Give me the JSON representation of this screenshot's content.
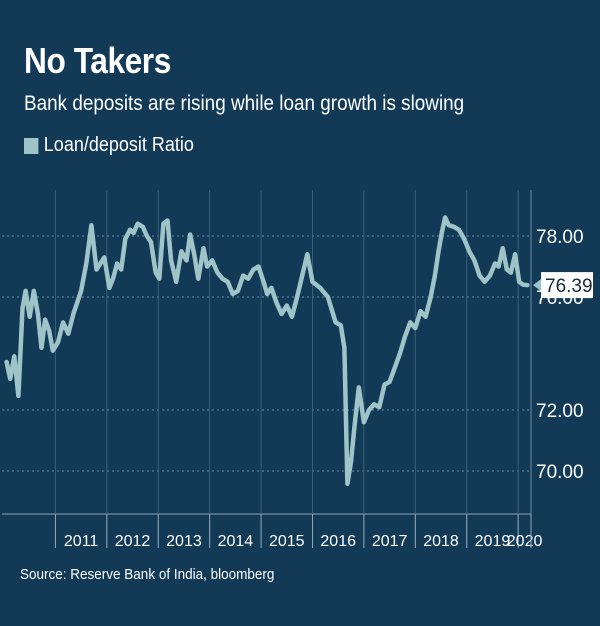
{
  "header": {
    "title": "No Takers",
    "subtitle": "Bank deposits are rising while loan growth is slowing",
    "legend_label": "Loan/deposit Ratio"
  },
  "footer": {
    "source": "Source: Reserve Bank of India, bloomberg"
  },
  "colors": {
    "background": "#123a57",
    "line": "#9ec4c8",
    "grid": "#5d7d94",
    "text": "#ffffff"
  },
  "chart_data": {
    "type": "line",
    "title": "No Takers",
    "subtitle": "Bank deposits are rising while loan growth is slowing",
    "xlabel": "",
    "ylabel": "",
    "x_tick_labels": [
      "2011",
      "2012",
      "2013",
      "2014",
      "2015",
      "2016",
      "2017",
      "2018",
      "2019",
      "2020"
    ],
    "y_tick_labels": [
      "78.00",
      "76.00",
      "72.00",
      "70.00"
    ],
    "grid": "horizontal dotted",
    "legend_placement": "top-left",
    "last_value_label": "76.39",
    "series": [
      {
        "name": "Loan/deposit Ratio",
        "points": [
          [
            2010.05,
            73.7
          ],
          [
            2010.12,
            73.1
          ],
          [
            2010.2,
            73.9
          ],
          [
            2010.28,
            72.5
          ],
          [
            2010.36,
            75.6
          ],
          [
            2010.42,
            76.2
          ],
          [
            2010.5,
            75.3
          ],
          [
            2010.58,
            76.2
          ],
          [
            2010.66,
            75.4
          ],
          [
            2010.73,
            74.2
          ],
          [
            2010.8,
            75.2
          ],
          [
            2010.88,
            74.8
          ],
          [
            2010.95,
            74.1
          ],
          [
            2011.05,
            74.4
          ],
          [
            2011.15,
            75.1
          ],
          [
            2011.25,
            74.7
          ],
          [
            2011.35,
            75.4
          ],
          [
            2011.5,
            76.2
          ],
          [
            2011.6,
            77.1
          ],
          [
            2011.7,
            78.7
          ],
          [
            2011.8,
            76.9
          ],
          [
            2011.95,
            77.3
          ],
          [
            2012.05,
            76.3
          ],
          [
            2012.12,
            76.6
          ],
          [
            2012.2,
            77.1
          ],
          [
            2012.28,
            76.9
          ],
          [
            2012.36,
            77.9
          ],
          [
            2012.45,
            78.4
          ],
          [
            2012.52,
            78.2
          ],
          [
            2012.6,
            78.8
          ],
          [
            2012.7,
            78.6
          ],
          [
            2012.78,
            78.0
          ],
          [
            2012.86,
            77.8
          ],
          [
            2012.95,
            76.8
          ],
          [
            2013.02,
            76.6
          ],
          [
            2013.1,
            78.8
          ],
          [
            2013.18,
            79.0
          ],
          [
            2013.25,
            77.2
          ],
          [
            2013.35,
            76.5
          ],
          [
            2013.45,
            77.5
          ],
          [
            2013.55,
            77.2
          ],
          [
            2013.62,
            78.1
          ],
          [
            2013.7,
            77.4
          ],
          [
            2013.78,
            76.6
          ],
          [
            2013.88,
            77.6
          ],
          [
            2013.95,
            77.0
          ],
          [
            2014.05,
            77.2
          ],
          [
            2014.15,
            76.8
          ],
          [
            2014.25,
            76.6
          ],
          [
            2014.35,
            76.5
          ],
          [
            2014.45,
            76.1
          ],
          [
            2014.55,
            76.2
          ],
          [
            2014.65,
            76.7
          ],
          [
            2014.75,
            76.6
          ],
          [
            2014.85,
            76.9
          ],
          [
            2014.95,
            77.0
          ],
          [
            2015.05,
            76.5
          ],
          [
            2015.12,
            76.1
          ],
          [
            2015.2,
            76.3
          ],
          [
            2015.3,
            75.8
          ],
          [
            2015.4,
            75.4
          ],
          [
            2015.5,
            75.7
          ],
          [
            2015.6,
            75.3
          ],
          [
            2015.7,
            76.0
          ],
          [
            2015.8,
            76.7
          ],
          [
            2015.9,
            77.4
          ],
          [
            2016.0,
            76.5
          ],
          [
            2016.15,
            76.3
          ],
          [
            2016.3,
            76.0
          ],
          [
            2016.45,
            75.1
          ],
          [
            2016.55,
            75.0
          ],
          [
            2016.62,
            74.2
          ],
          [
            2016.68,
            69.6
          ],
          [
            2016.75,
            70.3
          ],
          [
            2016.82,
            71.5
          ],
          [
            2016.9,
            72.8
          ],
          [
            2017.0,
            71.6
          ],
          [
            2017.1,
            72.0
          ],
          [
            2017.2,
            72.2
          ],
          [
            2017.3,
            72.1
          ],
          [
            2017.4,
            72.9
          ],
          [
            2017.5,
            73.0
          ],
          [
            2017.6,
            73.5
          ],
          [
            2017.7,
            74.0
          ],
          [
            2017.8,
            74.6
          ],
          [
            2017.9,
            75.1
          ],
          [
            2018.0,
            74.9
          ],
          [
            2018.1,
            75.5
          ],
          [
            2018.2,
            75.3
          ],
          [
            2018.3,
            76.0
          ],
          [
            2018.38,
            76.7
          ],
          [
            2018.45,
            77.5
          ],
          [
            2018.52,
            78.3
          ],
          [
            2018.58,
            79.2
          ],
          [
            2018.65,
            78.7
          ],
          [
            2018.75,
            78.6
          ],
          [
            2018.85,
            78.4
          ],
          [
            2018.95,
            77.9
          ],
          [
            2019.05,
            77.5
          ],
          [
            2019.15,
            77.2
          ],
          [
            2019.25,
            76.7
          ],
          [
            2019.35,
            76.5
          ],
          [
            2019.45,
            76.7
          ],
          [
            2019.55,
            77.1
          ],
          [
            2019.62,
            77.0
          ],
          [
            2019.7,
            77.6
          ],
          [
            2019.78,
            76.9
          ],
          [
            2019.86,
            76.8
          ],
          [
            2019.94,
            77.4
          ],
          [
            2020.02,
            76.5
          ],
          [
            2020.1,
            76.4
          ],
          [
            2020.18,
            76.39
          ]
        ]
      }
    ]
  }
}
